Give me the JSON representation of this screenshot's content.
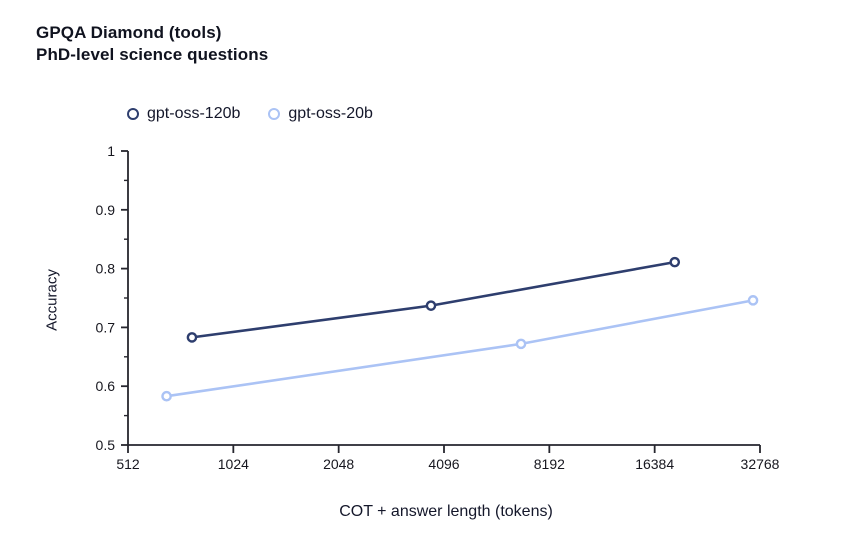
{
  "chart_data": {
    "type": "line",
    "title": "GPQA Diamond (tools)",
    "subtitle": "PhD-level science questions",
    "xlabel": "COT + answer length (tokens)",
    "ylabel": "Accuracy",
    "x_scale": "log2",
    "xlim": [
      512,
      32768
    ],
    "ylim": [
      0.5,
      1.0
    ],
    "x_ticks": [
      512,
      1024,
      2048,
      4096,
      8192,
      16384,
      32768
    ],
    "y_ticks": [
      0.5,
      0.6,
      0.7,
      0.8,
      0.9,
      1
    ],
    "y_minor_tick_step": 0.05,
    "grid": false,
    "legend_position": "top-left-horizontal",
    "marker_style": "open-circle",
    "series": [
      {
        "name": "gpt-oss-120b",
        "color": "#2e3e6e",
        "points": [
          {
            "x": 780,
            "y": 0.683
          },
          {
            "x": 3760,
            "y": 0.737
          },
          {
            "x": 18700,
            "y": 0.811
          }
        ]
      },
      {
        "name": "gpt-oss-20b",
        "color": "#abc3f5",
        "points": [
          {
            "x": 660,
            "y": 0.583
          },
          {
            "x": 6800,
            "y": 0.672
          },
          {
            "x": 31300,
            "y": 0.746
          }
        ]
      }
    ]
  }
}
